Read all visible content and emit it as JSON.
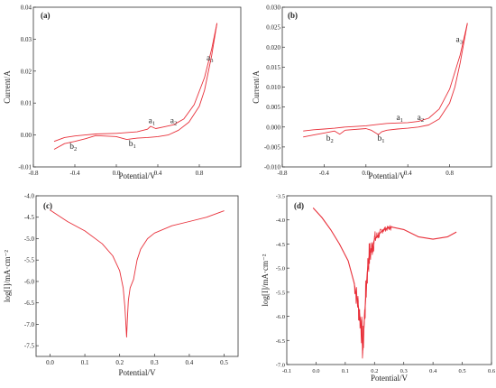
{
  "chart_data": [
    {
      "id": "a",
      "type": "line",
      "panel_label": "(a)",
      "xlabel": "Potential/V",
      "ylabel": "Current/A",
      "xlim": [
        -0.8,
        1.2
      ],
      "ylim": [
        -0.01,
        0.04
      ],
      "x_ticks": [
        -0.8,
        -0.4,
        0.0,
        0.4,
        0.8
      ],
      "x_tick_labels": [
        "-0.8",
        "-0.4",
        "0.0",
        "0.4",
        "0.8"
      ],
      "y_ticks": [
        -0.01,
        0.0,
        0.01,
        0.02,
        0.03,
        0.04
      ],
      "y_tick_labels": [
        "-0.01",
        "0.00",
        "0.01",
        "0.02",
        "0.03",
        "0.04"
      ],
      "color": "#e8303a",
      "series": [
        {
          "x": [
            -0.6,
            -0.5,
            -0.4,
            -0.3,
            -0.2,
            0.0,
            0.2,
            0.3,
            0.33,
            0.38,
            0.45,
            0.55,
            0.65,
            0.75,
            0.85,
            0.92,
            0.97
          ],
          "y": [
            -0.002,
            -0.0008,
            -0.0003,
            0.0,
            0.0003,
            0.0005,
            0.001,
            0.0018,
            0.0027,
            0.002,
            0.0025,
            0.0032,
            0.005,
            0.0095,
            0.018,
            0.027,
            0.035
          ]
        },
        {
          "x": [
            0.97,
            0.92,
            0.85,
            0.8,
            0.7,
            0.6,
            0.5,
            0.4,
            0.3,
            0.2,
            0.1,
            0.0,
            -0.2,
            -0.3,
            -0.4,
            -0.5,
            -0.6
          ],
          "y": [
            0.035,
            0.025,
            0.014,
            0.009,
            0.004,
            0.0015,
            0.0,
            -0.0005,
            -0.0008,
            -0.001,
            -0.0014,
            -0.0005,
            -0.0002,
            -0.0012,
            -0.002,
            -0.0027,
            -0.0045
          ]
        }
      ],
      "annotations": [
        {
          "text": "a",
          "sub": "1",
          "x": 0.31,
          "y": 0.0037
        },
        {
          "text": "a",
          "sub": "2",
          "x": 0.52,
          "y": 0.0037
        },
        {
          "text": "a",
          "sub": "3",
          "x": 0.87,
          "y": 0.0233
        },
        {
          "text": "b",
          "sub": "2",
          "x": -0.45,
          "y": -0.0044
        },
        {
          "text": "b",
          "sub": "1",
          "x": 0.12,
          "y": -0.0035
        }
      ]
    },
    {
      "id": "b",
      "type": "line",
      "panel_label": "(b)",
      "xlabel": "Potential/V",
      "ylabel": "Current/A",
      "xlim": [
        -0.8,
        1.2
      ],
      "ylim": [
        -0.01,
        0.03
      ],
      "x_ticks": [
        -0.8,
        -0.4,
        0.0,
        0.4,
        0.8
      ],
      "x_tick_labels": [
        "-0.8",
        "-0.4",
        "0.0",
        "0.4",
        "0.8"
      ],
      "y_ticks": [
        -0.01,
        -0.005,
        0.0,
        0.005,
        0.01,
        0.015,
        0.02,
        0.025,
        0.03
      ],
      "y_tick_labels": [
        "-0.010",
        "-0.005",
        "0.000",
        "0.005",
        "0.010",
        "0.015",
        "0.020",
        "0.025",
        "0.030"
      ],
      "color": "#e8303a",
      "series": [
        {
          "x": [
            -0.6,
            -0.5,
            -0.4,
            -0.3,
            -0.2,
            0.0,
            0.1,
            0.2,
            0.3,
            0.4,
            0.5,
            0.6,
            0.7,
            0.8,
            0.9,
            0.97
          ],
          "y": [
            -0.001,
            -0.0007,
            -0.0005,
            -0.0003,
            0.0,
            0.0003,
            0.0006,
            0.0009,
            0.001,
            0.0011,
            0.0014,
            0.0022,
            0.0045,
            0.0095,
            0.018,
            0.026
          ]
        },
        {
          "x": [
            0.97,
            0.9,
            0.85,
            0.8,
            0.7,
            0.6,
            0.5,
            0.4,
            0.3,
            0.2,
            0.15,
            0.12,
            0.05,
            0.0,
            -0.2,
            -0.25,
            -0.3,
            -0.4,
            -0.5,
            -0.6
          ],
          "y": [
            0.026,
            0.016,
            0.01,
            0.006,
            0.002,
            0.0005,
            0.0,
            -0.0003,
            -0.0005,
            -0.0008,
            -0.0012,
            -0.0019,
            -0.0008,
            -0.0004,
            -0.0008,
            -0.0018,
            -0.001,
            -0.0015,
            -0.002,
            -0.0025
          ]
        }
      ],
      "annotations": [
        {
          "text": "a",
          "sub": "1",
          "x": 0.29,
          "y": 0.0018
        },
        {
          "text": "a",
          "sub": "2",
          "x": 0.49,
          "y": 0.0018
        },
        {
          "text": "a",
          "sub": "3",
          "x": 0.86,
          "y": 0.0213
        },
        {
          "text": "b",
          "sub": "2",
          "x": -0.38,
          "y": -0.0035
        },
        {
          "text": "b",
          "sub": "1",
          "x": 0.11,
          "y": -0.0034
        }
      ]
    },
    {
      "id": "c",
      "type": "line",
      "panel_label": "(c)",
      "xlabel": "Potential/V",
      "ylabel": "log[I]/mA·cm⁻²",
      "xlim": [
        -0.04,
        0.54
      ],
      "ylim": [
        -7.75,
        -4.0
      ],
      "x_ticks": [
        0.0,
        0.1,
        0.2,
        0.3,
        0.4,
        0.5
      ],
      "x_tick_labels": [
        "0.0",
        "0.1",
        "0.2",
        "0.3",
        "0.4",
        "0.5"
      ],
      "y_ticks": [
        -7.5,
        -7.0,
        -6.5,
        -6.0,
        -5.5,
        -5.0,
        -4.5,
        -4.0
      ],
      "y_tick_labels": [
        "-7.5",
        "-7.0",
        "-6.5",
        "-6.0",
        "-5.5",
        "-5.0",
        "-4.5",
        "-4.0"
      ],
      "color": "#e8303a",
      "series": [
        {
          "x": [
            0.0,
            0.05,
            0.1,
            0.15,
            0.18,
            0.2,
            0.21,
            0.215,
            0.218,
            0.22,
            0.222,
            0.225,
            0.23,
            0.24,
            0.245,
            0.25,
            0.26,
            0.28,
            0.3,
            0.35,
            0.4,
            0.45,
            0.5
          ],
          "y": [
            -4.33,
            -4.6,
            -4.82,
            -5.12,
            -5.4,
            -5.75,
            -6.15,
            -6.6,
            -7.0,
            -7.3,
            -6.9,
            -6.45,
            -6.15,
            -5.95,
            -5.72,
            -5.5,
            -5.25,
            -5.0,
            -4.87,
            -4.7,
            -4.6,
            -4.5,
            -4.35
          ]
        }
      ]
    },
    {
      "id": "d",
      "type": "line",
      "panel_label": "(d)",
      "xlabel": "Potential/V",
      "ylabel": "log[I]/mA·cm⁻²",
      "xlim": [
        -0.1,
        0.6
      ],
      "ylim": [
        -7.0,
        -3.5
      ],
      "x_ticks": [
        -0.1,
        0.0,
        0.1,
        0.2,
        0.3,
        0.4,
        0.5,
        0.6
      ],
      "x_tick_labels": [
        "-0.1",
        "0.0",
        "0.1",
        "0.2",
        "0.3",
        "0.4",
        "0.5",
        "0.6"
      ],
      "y_ticks": [
        -7.0,
        -6.5,
        -6.0,
        -5.5,
        -5.0,
        -4.5,
        -4.0,
        -3.5
      ],
      "y_tick_labels": [
        "-7.0",
        "-6.5",
        "-6.0",
        "-5.5",
        "-5.0",
        "-4.5",
        "-4.0",
        "-3.5"
      ],
      "color": "#e8303a",
      "series": [
        {
          "x": [
            -0.01,
            0.02,
            0.05,
            0.08,
            0.11,
            0.13,
            0.145,
            0.155,
            0.16,
            0.165,
            0.17,
            0.175,
            0.18,
            0.2,
            0.23,
            0.26,
            0.3,
            0.35,
            0.4,
            0.45,
            0.48
          ],
          "y": [
            -3.75,
            -3.95,
            -4.2,
            -4.5,
            -4.85,
            -5.3,
            -5.8,
            -6.2,
            -6.7,
            -6.1,
            -5.6,
            -5.1,
            -4.8,
            -4.4,
            -4.2,
            -4.15,
            -4.2,
            -4.35,
            -4.4,
            -4.35,
            -4.25
          ]
        }
      ]
    }
  ]
}
